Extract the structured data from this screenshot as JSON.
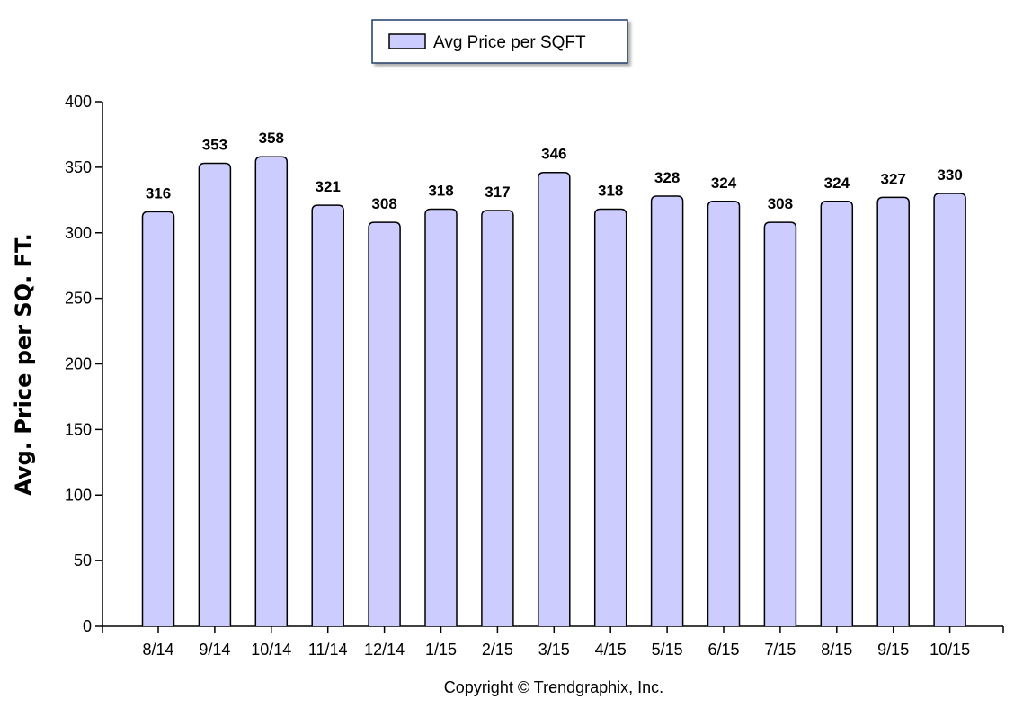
{
  "chart_data": {
    "type": "bar",
    "categories": [
      "8/14",
      "9/14",
      "10/14",
      "11/14",
      "12/14",
      "1/15",
      "2/15",
      "3/15",
      "4/15",
      "5/15",
      "6/15",
      "7/15",
      "8/15",
      "9/15",
      "10/15"
    ],
    "series": [
      {
        "name": "Avg Price per SQFT",
        "values": [
          316,
          353,
          358,
          321,
          308,
          318,
          317,
          346,
          318,
          328,
          324,
          308,
          324,
          327,
          330
        ]
      }
    ],
    "ylabel": "Avg. Price per SQ. FT.",
    "ylim": [
      0,
      400
    ],
    "yticks": [
      0,
      50,
      100,
      150,
      200,
      250,
      300,
      350,
      400
    ],
    "grid": false,
    "legend_position": "top-center",
    "bar_color": "#ccccff",
    "bar_stroke": "#000000",
    "data_labels": true
  },
  "footer": {
    "copyright": "Copyright © Trendgraphix, Inc."
  }
}
